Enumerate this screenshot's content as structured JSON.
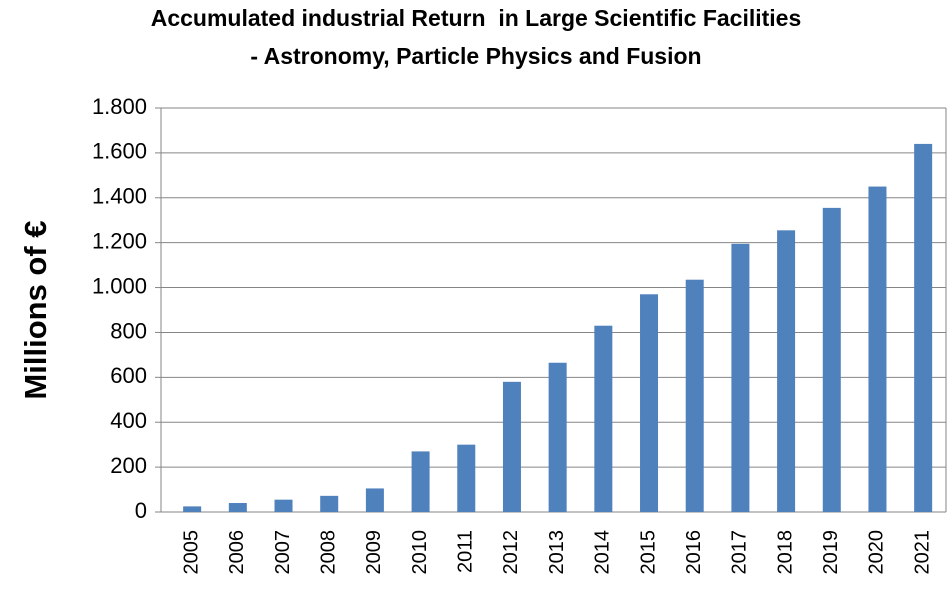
{
  "chart_data": {
    "type": "bar",
    "title": [
      "Accumulated industrial Return  in Large Scientific Facilities",
      "- Astronomy, Particle Physics and Fusion"
    ],
    "y_label": "Millions of €",
    "categories": [
      "2005",
      "2006",
      "2007",
      "2008",
      "2009",
      "2010",
      "2011",
      "2012",
      "2013",
      "2014",
      "2015",
      "2016",
      "2017",
      "2018",
      "2019",
      "2020",
      "2021"
    ],
    "values": [
      25,
      40,
      55,
      72,
      105,
      270,
      300,
      580,
      665,
      830,
      970,
      1035,
      1195,
      1255,
      1355,
      1450,
      1640
    ],
    "color": "#4f81bd",
    "ylim": [
      0,
      1800
    ],
    "yticks": [
      0,
      200,
      400,
      600,
      800,
      {
        "value": 1000,
        "label": "1.000"
      },
      {
        "value": 1200,
        "label": "1.200"
      },
      {
        "value": 1400,
        "label": "1.400"
      },
      {
        "value": 1600,
        "label": "1.600"
      },
      {
        "value": 1800,
        "label": "1.800"
      }
    ],
    "grid": true
  }
}
